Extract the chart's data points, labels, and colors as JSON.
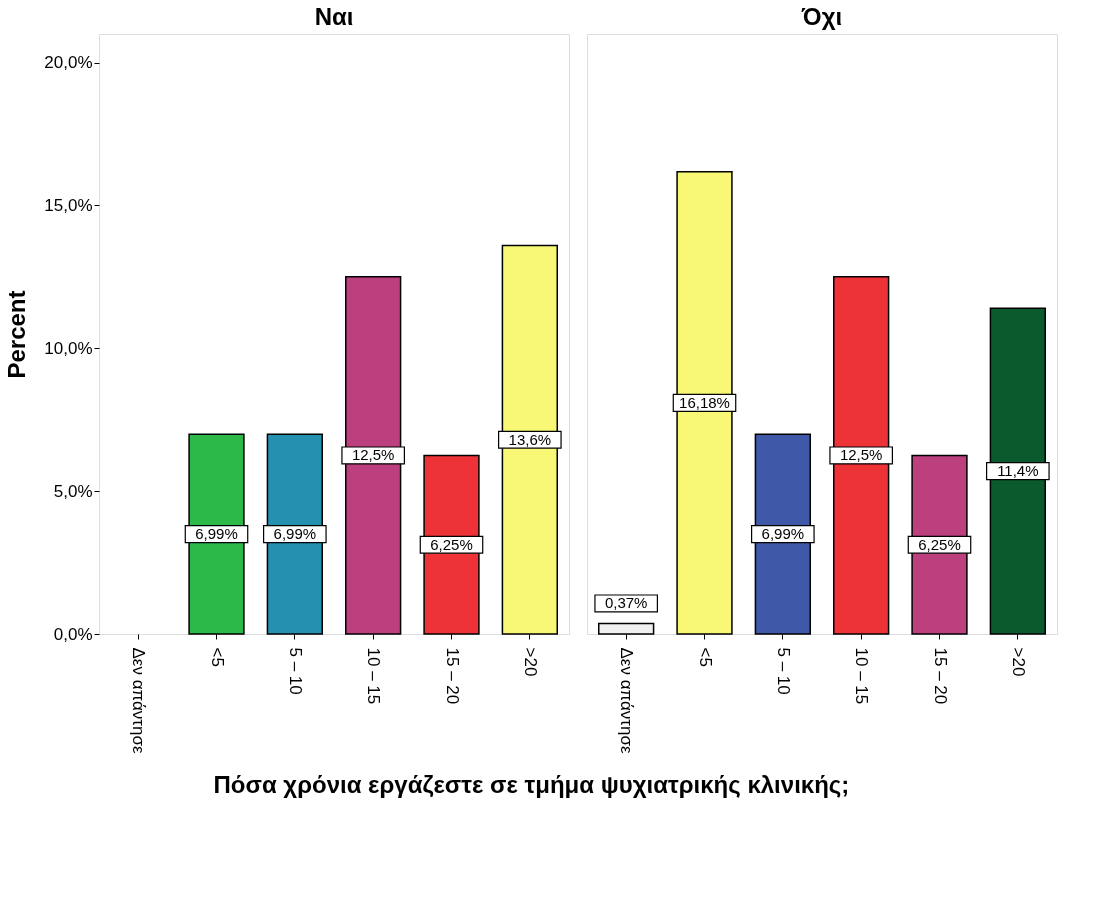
{
  "chart_data": [
    {
      "type": "bar",
      "title": "Ναι",
      "ylabel": "Percent",
      "xlabel": "Πόσα χρόνια εργάζεστε σε τμήμα ψυχιατρικής κλινικής;",
      "categories": [
        "Δεν απάντησε",
        "<5",
        "5 – 10",
        "10 – 15",
        "15 – 20",
        ">20"
      ],
      "values": [
        null,
        6.99,
        6.99,
        12.5,
        6.25,
        13.6
      ],
      "colors": [
        "#f0f0f0",
        "#2db84a",
        "#2590b0",
        "#bc3f7e",
        "#ee3338",
        "#f9f776"
      ],
      "value_labels": [
        null,
        "6,99%",
        "6,99%",
        "12,5%",
        "6,25%",
        "13,6%"
      ],
      "ylim": [
        0,
        21
      ],
      "yticks": [
        {
          "value": 0,
          "label": "0,0%"
        },
        {
          "value": 5,
          "label": "5,0%"
        },
        {
          "value": 10,
          "label": "10,0%"
        },
        {
          "value": 15,
          "label": "15,0%"
        },
        {
          "value": 20,
          "label": "20,0%"
        }
      ],
      "grid": false
    },
    {
      "type": "bar",
      "title": "Όχι",
      "categories": [
        "Δεν απάντησε",
        "<5",
        "5 – 10",
        "10 – 15",
        "15 – 20",
        ">20"
      ],
      "values": [
        0.37,
        16.18,
        6.99,
        12.5,
        6.25,
        11.4
      ],
      "colors": [
        "#f0f0f0",
        "#f9f776",
        "#3f58a8",
        "#ee3338",
        "#bc3f7e",
        "#0b5a2e"
      ],
      "value_labels": [
        "0,37%",
        "16,18%",
        "6,99%",
        "12,5%",
        "6,25%",
        "11,4%"
      ],
      "ylim": [
        0,
        21
      ],
      "tick_labels": "x",
      "grid": false
    }
  ]
}
